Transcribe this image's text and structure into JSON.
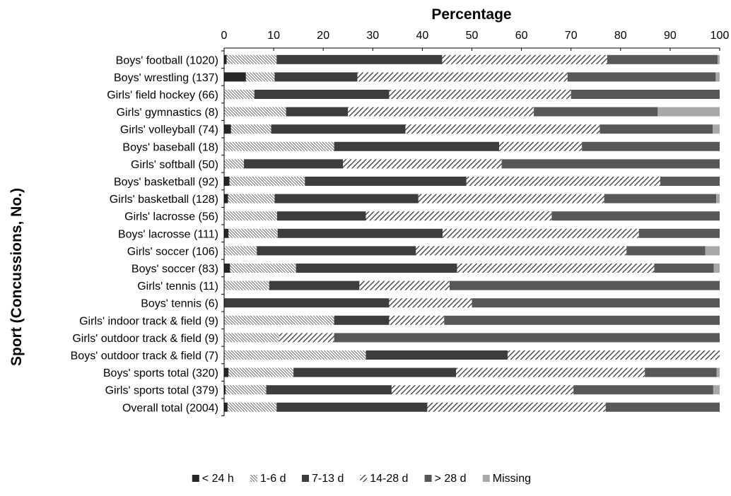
{
  "chart_data": {
    "type": "bar",
    "stacked": true,
    "orientation": "horizontal",
    "title": "Percentage",
    "xlabel": "Percentage",
    "ylabel": "Sport (Concussions, No.)",
    "xlim": [
      0,
      100
    ],
    "xticks": [
      "0",
      "10",
      "20",
      "30",
      "40",
      "50",
      "60",
      "70",
      "80",
      "90",
      "100"
    ],
    "grid": false,
    "legend_position": "bottom",
    "categories": [
      "Boys' football (1020)",
      "Boys' wrestling (137)",
      "Girls' field hockey (66)",
      "Girls' gymnastics (8)",
      "Girls' volleyball (74)",
      "Boys' baseball (18)",
      "Girls' softball (50)",
      "Boys' basketball (92)",
      "Girls' basketball (128)",
      "Girls' lacrosse (56)",
      "Boys' lacrosse (111)",
      "Girls' soccer (106)",
      "Boys' soccer (83)",
      "Girls' tennis (11)",
      "Boys' tennis (6)",
      "Girls' indoor track & field (9)",
      "Girls' outdoor track & field (9)",
      "Boys' outdoor track & field (7)",
      "Boys' sports total (320)",
      "Girls' sports total (379)",
      "Overall total (2004)"
    ],
    "series": [
      {
        "name": "< 24 h",
        "color": "#262626",
        "pattern": "solid",
        "values": [
          0.5,
          4.4,
          0,
          0,
          1.4,
          0,
          0,
          1.1,
          0.8,
          0,
          0.9,
          0,
          1.2,
          0,
          0,
          0,
          0,
          0,
          0.9,
          0.3,
          0.7
        ]
      },
      {
        "name": "1-6 d",
        "color": "#3a3a3a",
        "pattern": "dense-hatch",
        "values": [
          10.1,
          5.8,
          6.1,
          12.5,
          8.1,
          22.2,
          4.0,
          15.2,
          9.4,
          10.7,
          9.9,
          6.6,
          13.3,
          9.1,
          0,
          22.2,
          11.1,
          28.6,
          13.1,
          8.2,
          9.9
        ]
      },
      {
        "name": "7-13 d",
        "color": "#3d3d3d",
        "pattern": "solid",
        "values": [
          33.4,
          16.7,
          27.2,
          12.5,
          27.1,
          33.3,
          20.0,
          32.6,
          29.0,
          17.9,
          33.3,
          32.1,
          32.5,
          18.2,
          33.3,
          11.1,
          0,
          28.6,
          32.8,
          25.3,
          30.4
        ]
      },
      {
        "name": "14-28 d",
        "color": "#2f2f2f",
        "pattern": "sparse-hatch",
        "values": [
          33.3,
          42.4,
          36.7,
          37.5,
          39.2,
          16.7,
          32.0,
          39.1,
          37.5,
          37.5,
          39.6,
          42.5,
          39.8,
          18.2,
          16.7,
          11.1,
          11.1,
          42.8,
          38.1,
          36.7,
          36.0
        ]
      },
      {
        "name": "> 28 d",
        "color": "#585858",
        "pattern": "solid",
        "values": [
          22.3,
          29.9,
          30.0,
          25.0,
          22.8,
          27.8,
          44.0,
          12.0,
          22.6,
          33.9,
          16.3,
          15.9,
          12.0,
          54.5,
          50.0,
          55.6,
          77.8,
          0,
          14.5,
          28.2,
          23.0
        ]
      },
      {
        "name": "Missing",
        "color": "#a8a8a8",
        "pattern": "solid",
        "values": [
          0.4,
          0.8,
          0,
          12.5,
          1.4,
          0,
          0,
          0,
          0.7,
          0,
          0,
          2.9,
          1.2,
          0,
          0,
          0,
          0,
          0,
          0.6,
          1.3,
          0
        ]
      }
    ]
  }
}
